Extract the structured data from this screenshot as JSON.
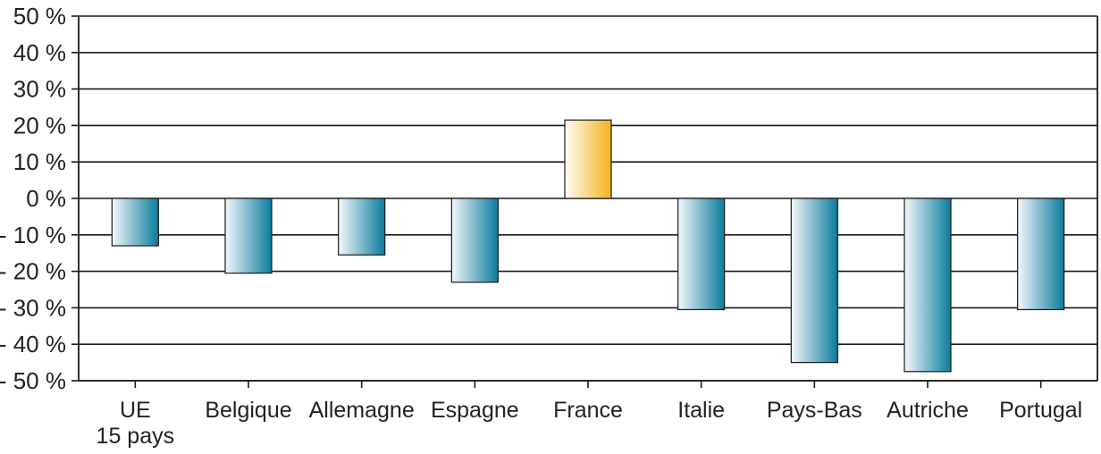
{
  "chart_data": {
    "type": "bar",
    "title": "",
    "xlabel": "",
    "ylabel": "",
    "categories": [
      "UE 15 pays",
      "Belgique",
      "Allemagne",
      "Espagne",
      "France",
      "Italie",
      "Pays-Bas",
      "Autriche",
      "Portugal"
    ],
    "category_lines": [
      [
        "UE",
        "15 pays"
      ],
      [
        "Belgique"
      ],
      [
        "Allemagne"
      ],
      [
        "Espagne"
      ],
      [
        "France"
      ],
      [
        "Italie"
      ],
      [
        "Pays-Bas"
      ],
      [
        "Autriche"
      ],
      [
        "Portugal"
      ]
    ],
    "values": [
      -13,
      -20.5,
      -15.5,
      -23,
      21.5,
      -30.5,
      -45,
      -47.5,
      -30.5
    ],
    "highlight_category": "France",
    "ylim": [
      -50,
      50
    ],
    "yticks": [
      50,
      40,
      30,
      20,
      10,
      0,
      -10,
      -20,
      -30,
      -40,
      -50
    ],
    "ytick_labels": [
      "50 %",
      "40 %",
      "30 %",
      "20 %",
      "10 %",
      "0 %",
      "- 10 %",
      "- 20 %",
      "- 30 %",
      "- 40 %",
      "- 50 %"
    ],
    "grid": true,
    "legend": "none",
    "colors": {
      "bar_light": "#f4f7fb",
      "bar_dark": "#0a7c9c",
      "highlight_light": "#fffdf5",
      "highlight_dark": "#f2b21e",
      "gridline": "#1a1a1a"
    }
  }
}
